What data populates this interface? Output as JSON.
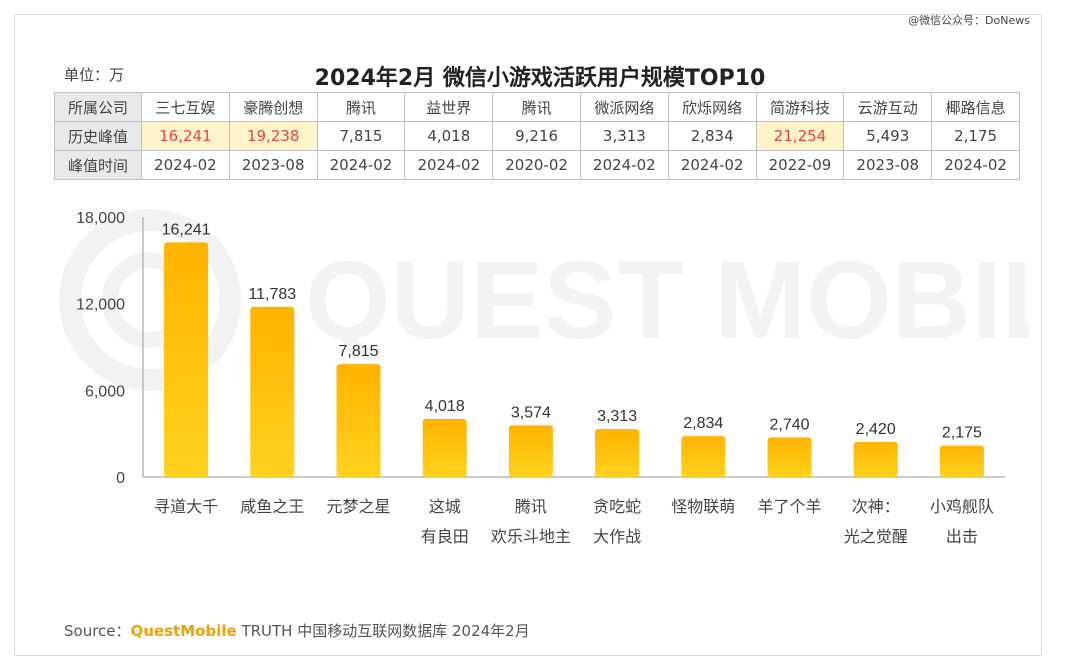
{
  "watermark": "QUEST MOBILE",
  "wechat_tag": "@微信公众号：DoNews",
  "unit_label": "单位：万",
  "title": "2024年2月 微信小游戏活跃用户规模TOP10",
  "table": {
    "row_headers": [
      "所属公司",
      "历史峰值",
      "峰值时间"
    ],
    "companies": [
      "三七互娱",
      "豪腾创想",
      "腾讯",
      "益世界",
      "腾讯",
      "微派网络",
      "欣烁网络",
      "简游科技",
      "云游互动",
      "椰路信息"
    ],
    "peaks": [
      "16,241",
      "19,238",
      "7,815",
      "4,018",
      "9,216",
      "3,313",
      "2,834",
      "21,254",
      "5,493",
      "2,175"
    ],
    "peak_times": [
      "2024-02",
      "2023-08",
      "2024-02",
      "2024-02",
      "2020-02",
      "2024-02",
      "2024-02",
      "2022-09",
      "2023-08",
      "2024-02"
    ],
    "highlighted_peaks": [
      0,
      1,
      7
    ],
    "highlight_color": "#e8453c"
  },
  "chart_data": {
    "type": "bar",
    "categories": [
      [
        "寻道大千"
      ],
      [
        "咸鱼之王"
      ],
      [
        "元梦之星"
      ],
      [
        "这城",
        "有良田"
      ],
      [
        "腾讯",
        "欢乐斗地主"
      ],
      [
        "贪吃蛇",
        "大作战"
      ],
      [
        "怪物联萌"
      ],
      [
        "羊了个羊"
      ],
      [
        "次神：",
        "光之觉醒"
      ],
      [
        "小鸡舰队",
        "出击"
      ]
    ],
    "values": [
      16241,
      11783,
      7815,
      4018,
      3574,
      3313,
      2834,
      2740,
      2420,
      2175
    ],
    "value_labels": [
      "16,241",
      "11,783",
      "7,815",
      "4,018",
      "3,574",
      "3,313",
      "2,834",
      "2,740",
      "2,420",
      "2,175"
    ],
    "y_ticks": [
      0,
      6000,
      12000,
      18000
    ],
    "y_tick_labels": [
      "0",
      "6,000",
      "12,000",
      "18,000"
    ],
    "ylim": [
      0,
      18000
    ],
    "bar_color_top": "#ffb300",
    "bar_color_bottom": "#ffd21f"
  },
  "source": {
    "prefix": "Source：",
    "brand": "QuestMobile",
    "suffix": " TRUTH 中国移动互联网数据库 2024年2月"
  }
}
